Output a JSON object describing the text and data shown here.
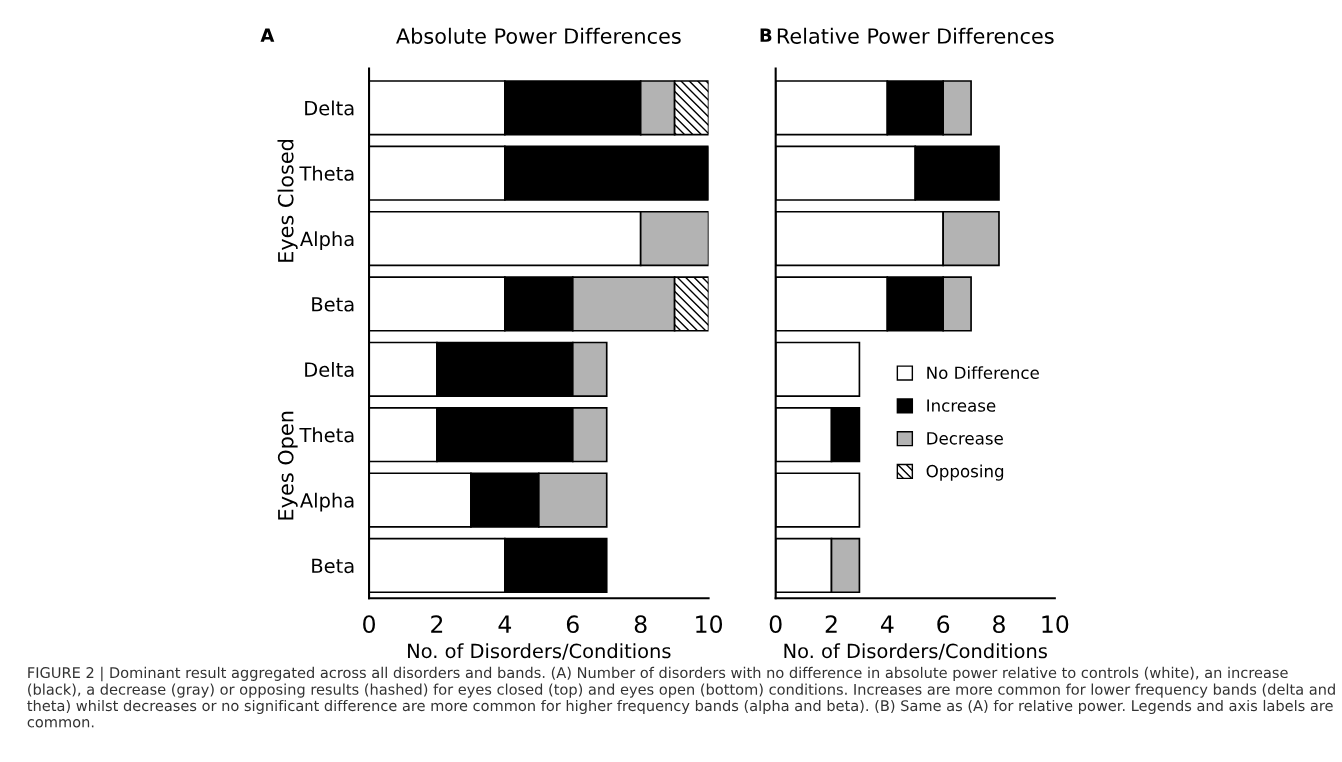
{
  "chart_data": [
    {
      "type": "bar",
      "orientation": "horizontal",
      "stacked": true,
      "title": "Absolute Power Differences",
      "xlabel": "No. of Disorders/Conditions",
      "categories": [
        "Delta",
        "Theta",
        "Alpha",
        "Beta",
        "Delta",
        "Theta",
        "Alpha",
        "Beta"
      ],
      "series": [
        {
          "color": "#ffffff",
          "values": [
            4,
            4,
            8,
            4,
            2,
            2,
            3,
            4
          ]
        },
        {
          "color": "#000000",
          "values": [
            4,
            6,
            0,
            2,
            4,
            4,
            2,
            3
          ]
        },
        {
          "color": "#b3b3b3",
          "values": [
            1,
            0,
            2,
            3,
            1,
            1,
            2,
            0
          ]
        },
        {
          "color": "#000000",
          "values": [
            1,
            0,
            0,
            1,
            0,
            0,
            0,
            0
          ]
        }
      ],
      "xlim": [
        0,
        10
      ],
      "xticks": [
        0,
        2,
        4,
        6,
        8,
        10
      ],
      "grid": false,
      "legend": false,
      "annotations": [
        "A",
        "Eyes Closed",
        "Eyes Open",
        "FIGURE 2 | Dominant result aggregated across all disorders and bands. (A) Number of disorders with no difference in absolute power relative to controls (white), an increase (black), a decrease (gray) or opposing results (hashed) for eyes closed (top) and eyes open (bottom) conditions. Increases are more common for lower frequency bands (delta and theta) whilst decreases or no significant difference are more common for higher frequency bands (alpha and beta). (B) Same as (A) for relative power. Legends and axis labels are common."
      ]
    },
    {
      "type": "bar",
      "orientation": "horizontal",
      "stacked": true,
      "title": "Relative Power Differences",
      "xlabel": "No. of Disorders/Conditions",
      "categories": [
        null,
        null,
        null,
        null,
        null,
        null,
        null,
        null
      ],
      "series": [
        {
          "name": "No Difference",
          "color": "#ffffff",
          "values": [
            4,
            5,
            6,
            4,
            3,
            2,
            3,
            2
          ]
        },
        {
          "name": "Increase",
          "color": "#000000",
          "values": [
            2,
            3,
            0,
            2,
            0,
            1,
            0,
            0
          ]
        },
        {
          "name": "Decrease",
          "color": "#b3b3b3",
          "values": [
            1,
            0,
            2,
            1,
            0,
            0,
            0,
            1
          ]
        },
        {
          "name": "Opposing",
          "color": "#000000",
          "values": [
            0,
            0,
            0,
            0,
            0,
            0,
            0,
            0
          ]
        }
      ],
      "xlim": [
        0,
        10
      ],
      "xticks": [
        0,
        2,
        4,
        6,
        8,
        10
      ],
      "grid": false,
      "legend": "center right",
      "annotations": [
        "B"
      ]
    }
  ]
}
